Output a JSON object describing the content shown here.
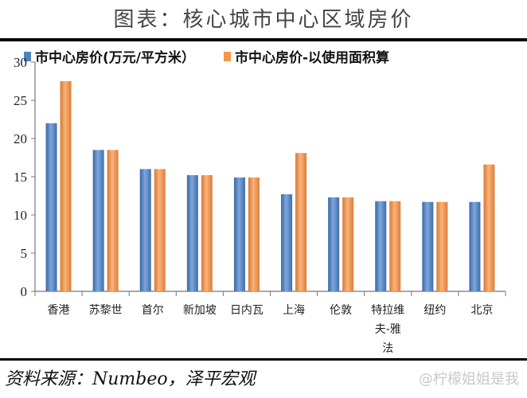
{
  "title": "图表：核心城市中心区域房价",
  "legend": [
    {
      "label": "市中心房价(万元/平方米）",
      "color": "#4f81bd"
    },
    {
      "label": "市中心房价-以使用面积算",
      "color": "#f79646"
    }
  ],
  "source": "资料来源：Numbeo，泽平宏观",
  "watermark": "@柠檬姐姐是我",
  "chart_data": {
    "type": "bar",
    "title": "图表：核心城市中心区域房价",
    "xlabel": "",
    "ylabel": "",
    "ylim": [
      0,
      30
    ],
    "yticks": [
      0,
      5,
      10,
      15,
      20,
      25,
      30
    ],
    "grid": false,
    "legend_position": "top",
    "categories": [
      "香港",
      "苏黎世",
      "首尔",
      "新加坡",
      "日内瓦",
      "上海",
      "伦敦",
      "特拉维夫-雅法",
      "纽约",
      "北京"
    ],
    "category_lines": [
      [
        "香港"
      ],
      [
        "苏黎世"
      ],
      [
        "首尔"
      ],
      [
        "新加坡"
      ],
      [
        "日内瓦"
      ],
      [
        "上海"
      ],
      [
        "伦敦"
      ],
      [
        "特拉维",
        "夫-雅",
        "法"
      ],
      [
        "纽约"
      ],
      [
        "北京"
      ]
    ],
    "series": [
      {
        "name": "市中心房价(万元/平方米）",
        "color": "#4f81bd",
        "values": [
          22.0,
          18.5,
          16.0,
          15.2,
          14.9,
          12.7,
          12.3,
          11.8,
          11.7,
          11.7
        ]
      },
      {
        "name": "市中心房价-以使用面积算",
        "color": "#f79646",
        "values": [
          27.5,
          18.5,
          16.0,
          15.2,
          14.9,
          18.1,
          12.3,
          11.8,
          11.7,
          16.6
        ]
      }
    ]
  }
}
